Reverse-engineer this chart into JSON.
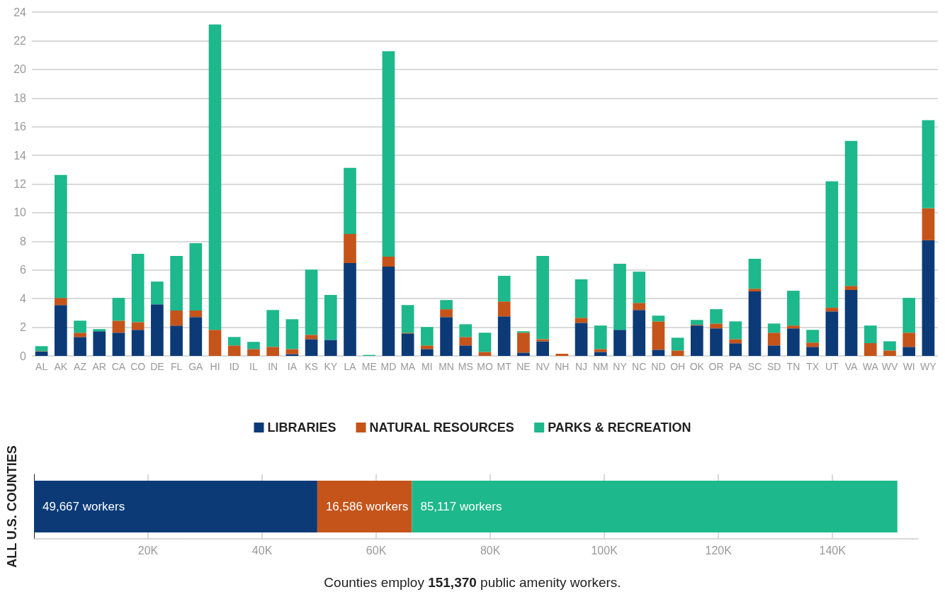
{
  "chart_data": [
    {
      "type": "bar",
      "stacked": true,
      "categories": [
        "AL",
        "AK",
        "AZ",
        "AR",
        "CA",
        "CO",
        "DE",
        "FL",
        "GA",
        "HI",
        "ID",
        "IL",
        "IN",
        "IA",
        "KS",
        "KY",
        "LA",
        "ME",
        "MD",
        "MA",
        "MI",
        "MN",
        "MS",
        "MO",
        "MT",
        "NE",
        "NV",
        "NH",
        "NJ",
        "NM",
        "NY",
        "NC",
        "ND",
        "OH",
        "OK",
        "OR",
        "PA",
        "SC",
        "SD",
        "TN",
        "TX",
        "UT",
        "VA",
        "WA",
        "WV",
        "WI",
        "WY"
      ],
      "series": [
        {
          "name": "LIBRARIES",
          "color": "#0b3a77",
          "values": [
            0.3,
            3.55,
            1.32,
            1.72,
            1.62,
            1.82,
            3.6,
            2.12,
            2.71,
            0,
            0,
            0,
            0,
            0.13,
            1.17,
            1.12,
            6.48,
            0,
            6.23,
            1.57,
            0.48,
            2.71,
            0.73,
            0,
            2.76,
            0.23,
            1.02,
            0,
            2.31,
            0.28,
            1.82,
            3.21,
            0.43,
            0,
            2.12,
            1.92,
            0.88,
            4.5,
            0.73,
            1.92,
            0.63,
            3.11,
            4.6,
            0,
            0,
            0.63,
            8.07
          ]
        },
        {
          "name": "NATURAL RESOURCES",
          "color": "#c5541a",
          "values": [
            0.03,
            0.5,
            0.3,
            0,
            0.84,
            0.54,
            0,
            1.05,
            0.46,
            1.82,
            0.73,
            0.48,
            0.63,
            0.35,
            0.3,
            0,
            2.03,
            0,
            0.7,
            0.05,
            0.25,
            0.55,
            0.59,
            0.28,
            1.04,
            1.39,
            0.15,
            0.15,
            0.35,
            0.2,
            0,
            0.49,
            1.98,
            0.38,
            0.05,
            0.34,
            0.29,
            0.19,
            0.89,
            0.2,
            0.3,
            0.25,
            0.29,
            0.89,
            0.38,
            0.99,
            2.23
          ]
        },
        {
          "name": "PARKS & RECREATION",
          "color": "#1db88b",
          "values": [
            0.35,
            8.58,
            0.84,
            0.15,
            1.59,
            4.76,
            1.59,
            3.81,
            4.7,
            21.32,
            0.59,
            0.5,
            2.58,
            2.08,
            4.56,
            3.13,
            4.61,
            0.07,
            14.33,
            1.93,
            1.29,
            0.64,
            0.89,
            1.34,
            1.79,
            0.1,
            5.81,
            0,
            2.68,
            1.64,
            4.61,
            2.18,
            0.4,
            0.89,
            0.34,
            1.0,
            1.24,
            2.09,
            0.64,
            2.43,
            0.89,
            8.82,
            10.12,
            1.23,
            0.64,
            2.43,
            6.15
          ]
        }
      ],
      "ylim": [
        0,
        24
      ],
      "yticks": [
        0,
        2,
        4,
        6,
        8,
        10,
        12,
        14,
        16,
        18,
        20,
        22,
        24
      ],
      "grid": "y",
      "legend": "bottom"
    },
    {
      "type": "bar",
      "stacked": true,
      "orientation": "horizontal",
      "categories": [
        "ALL U.S. COUNTIES"
      ],
      "series": [
        {
          "color": "#0b3a77",
          "values": [
            49667
          ],
          "value_labels": [
            "49,667 workers"
          ]
        },
        {
          "color": "#c5541a",
          "values": [
            16586
          ],
          "value_labels": [
            "16,586 workers"
          ]
        },
        {
          "color": "#1db88b",
          "values": [
            85117
          ],
          "value_labels": [
            "85,117 workers"
          ]
        }
      ],
      "xlim": [
        0,
        155000
      ],
      "xticks": [
        {
          "value": 20000,
          "label": "20K"
        },
        {
          "value": 40000,
          "label": "40K"
        },
        {
          "value": 60000,
          "label": "60K"
        },
        {
          "value": 80000,
          "label": "80K"
        },
        {
          "value": 100000,
          "label": "100K"
        },
        {
          "value": 120000,
          "label": "120K"
        },
        {
          "value": 140000,
          "label": "140K"
        }
      ],
      "grid": "x",
      "annotations": [
        "Counties employ 151,370 public amenity workers."
      ]
    }
  ]
}
